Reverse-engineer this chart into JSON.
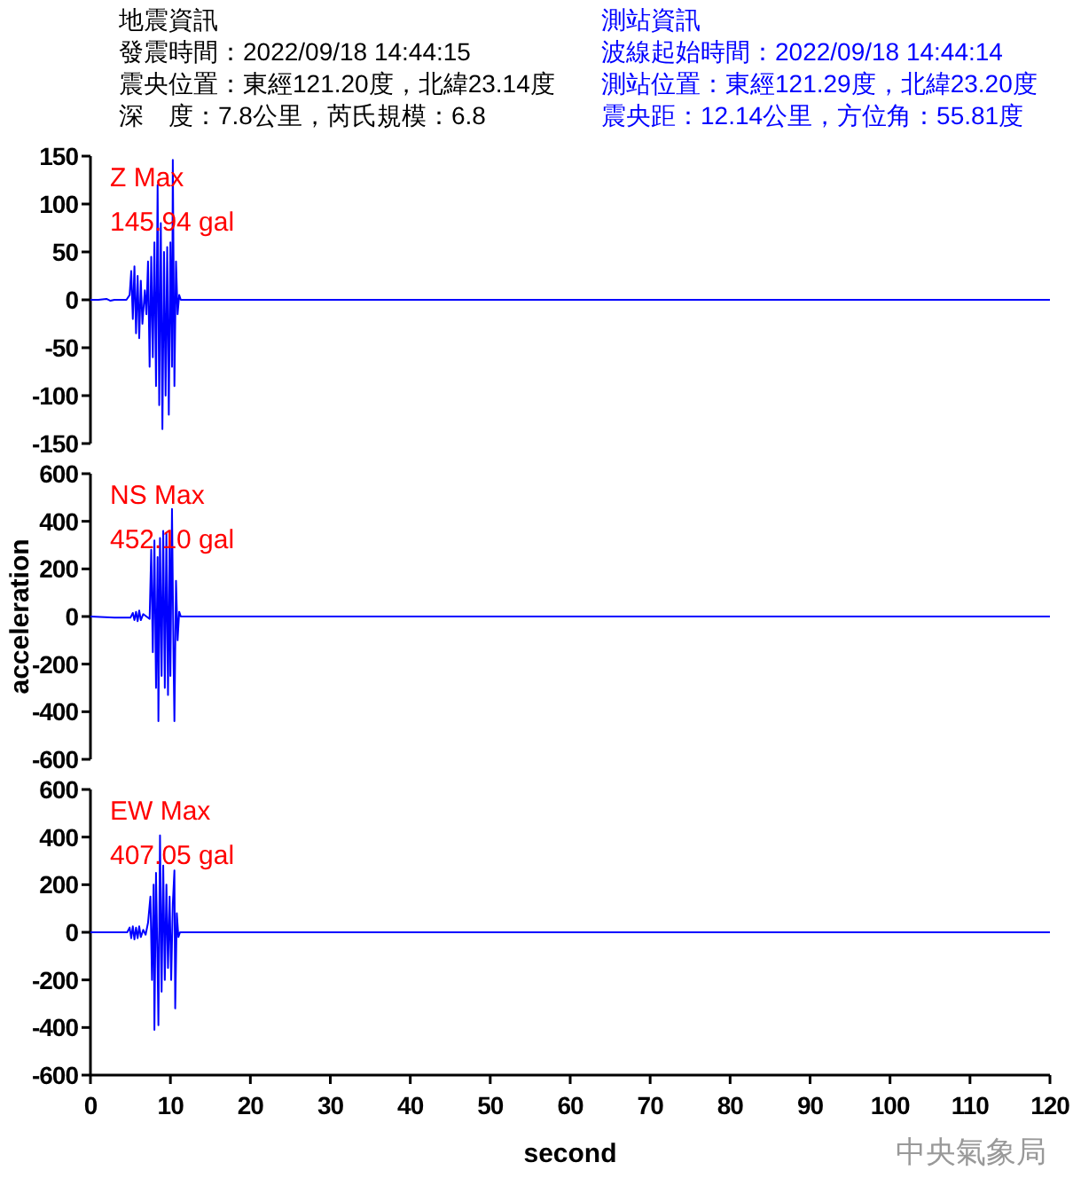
{
  "chart_data": [
    {
      "type": "other",
      "title": "地震資訊",
      "annotations": [
        "發震時間：2022/09/18 14:44:15",
        "震央位置：東經121.20度，北緯23.14度",
        "深　度：7.8公里，芮氏規模：6.8"
      ]
    },
    {
      "type": "other",
      "title": "測站資訊",
      "annotations": [
        "波線起始時間：2022/09/18 14:44:14",
        "測站位置：東經121.29度，北緯23.20度",
        "震央距：12.14公里，方位角：55.81度"
      ]
    },
    {
      "type": "line",
      "xlim": [
        0,
        120
      ],
      "ylim": [
        -150,
        150
      ],
      "yticks": [
        -150,
        -100,
        -50,
        0,
        50,
        100,
        150
      ],
      "tick_labels": "y",
      "annotations": [
        "Z Max",
        "145.94 gal"
      ],
      "x": [
        0,
        1,
        2,
        2.5,
        3,
        4.5,
        4.9,
        5.1,
        5.3,
        5.5,
        5.7,
        5.9,
        6.1,
        6.3,
        6.5,
        6.8,
        7.0,
        7.2,
        7.4,
        7.6,
        7.8,
        8.0,
        8.2,
        8.4,
        8.6,
        8.8,
        9.0,
        9.2,
        9.4,
        9.6,
        9.8,
        10.0,
        10.2,
        10.3,
        10.5,
        10.7,
        10.9,
        11.1,
        11.3,
        120
      ],
      "series": [
        {
          "color": "#0000ff",
          "values": [
            0,
            0,
            1,
            -1,
            0,
            0,
            5,
            30,
            -20,
            35,
            -35,
            25,
            -40,
            20,
            -25,
            10,
            -15,
            40,
            -70,
            45,
            -60,
            60,
            -90,
            120,
            -110,
            80,
            -135,
            50,
            -100,
            55,
            -120,
            60,
            -70,
            146,
            -90,
            40,
            -15,
            5,
            0,
            0
          ]
        }
      ]
    },
    {
      "type": "line",
      "xlim": [
        0,
        120
      ],
      "ylim": [
        -600,
        600
      ],
      "yticks": [
        -600,
        -400,
        -200,
        0,
        200,
        400,
        600
      ],
      "tick_labels": "y",
      "ylabel": "acceleration",
      "annotations": [
        "NS Max",
        "452.10 gal"
      ],
      "x": [
        0,
        3,
        5,
        5.3,
        5.5,
        5.7,
        5.9,
        6.1,
        6.3,
        6.6,
        7.0,
        7.4,
        7.6,
        7.8,
        8.0,
        8.2,
        8.4,
        8.5,
        8.7,
        8.9,
        9.1,
        9.3,
        9.5,
        9.7,
        9.9,
        10.0,
        10.2,
        10.4,
        10.5,
        10.7,
        10.9,
        11.1,
        11.3,
        120
      ],
      "series": [
        {
          "color": "#0000ff",
          "values": [
            0,
            -5,
            -5,
            15,
            -15,
            20,
            -20,
            25,
            -15,
            10,
            0,
            -10,
            280,
            -150,
            320,
            -300,
            250,
            -440,
            330,
            -250,
            360,
            -300,
            350,
            -330,
            320,
            -250,
            452,
            -200,
            -440,
            150,
            -100,
            20,
            0,
            0
          ]
        }
      ]
    },
    {
      "type": "line",
      "xlim": [
        0,
        120
      ],
      "xticks": [
        0,
        10,
        20,
        30,
        40,
        50,
        60,
        70,
        80,
        90,
        100,
        110,
        120
      ],
      "ylim": [
        -600,
        600
      ],
      "yticks": [
        -600,
        -400,
        -200,
        0,
        200,
        400,
        600
      ],
      "xlabel": "second",
      "annotations": [
        "EW Max",
        "407.05 gal",
        "中央氣象局"
      ],
      "x": [
        0,
        4.6,
        4.9,
        5.1,
        5.3,
        5.5,
        5.7,
        5.9,
        6.1,
        6.3,
        6.6,
        6.9,
        7.2,
        7.5,
        7.7,
        7.9,
        8.0,
        8.2,
        8.4,
        8.5,
        8.7,
        8.9,
        9.1,
        9.3,
        9.5,
        9.7,
        9.9,
        10.1,
        10.3,
        10.5,
        10.6,
        10.8,
        11.0,
        11.2,
        120
      ],
      "series": [
        {
          "color": "#0000ff",
          "values": [
            0,
            0,
            20,
            -25,
            25,
            -30,
            20,
            -25,
            25,
            -20,
            10,
            -10,
            40,
            150,
            -200,
            200,
            -410,
            250,
            -150,
            -390,
            407,
            -250,
            280,
            -200,
            200,
            -150,
            150,
            -200,
            120,
            260,
            -320,
            80,
            -20,
            0,
            0
          ]
        }
      ]
    }
  ]
}
